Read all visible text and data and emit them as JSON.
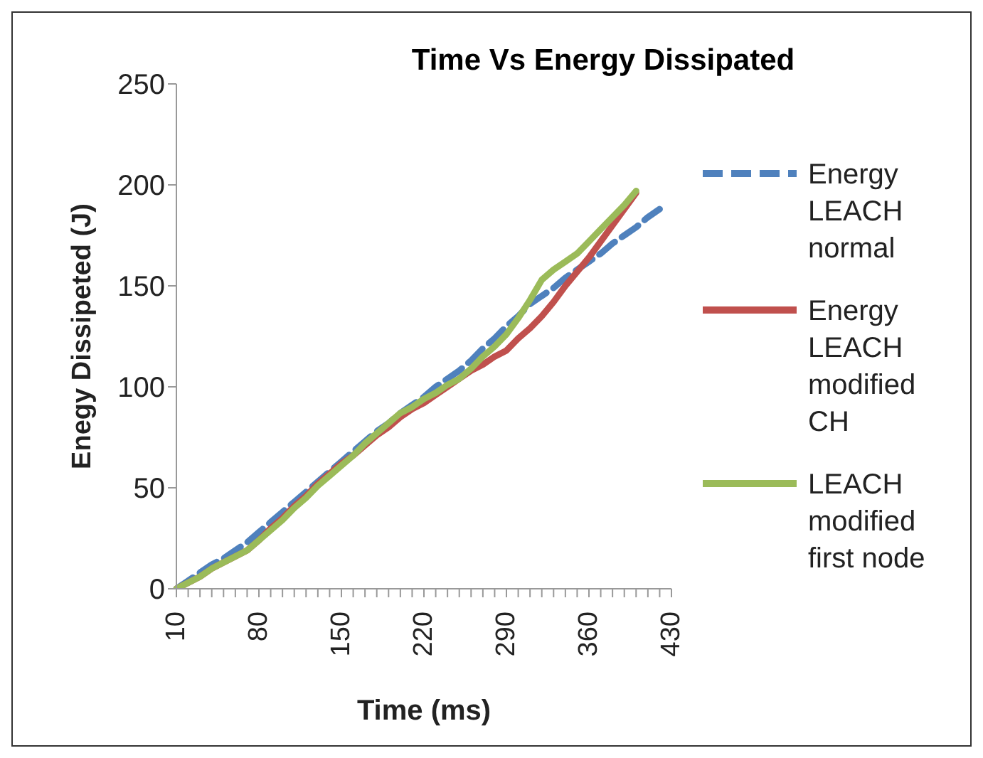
{
  "chart_data": {
    "type": "line",
    "title": "Time Vs Energy Dissipated",
    "xlabel": "Time (ms)",
    "ylabel": "Enegy Dissipeted (J)",
    "categories": [
      "10",
      null,
      null,
      null,
      null,
      null,
      null,
      "80",
      null,
      null,
      null,
      null,
      null,
      null,
      "150",
      null,
      null,
      null,
      null,
      null,
      null,
      "220",
      null,
      null,
      null,
      null,
      null,
      null,
      "290",
      null,
      null,
      null,
      null,
      null,
      null,
      "360",
      null,
      null,
      null,
      null,
      null,
      null,
      "430"
    ],
    "series": [
      {
        "name": "Energy LEACH normal",
        "color": "#4f81bd",
        "line_style": "dashed",
        "values": [
          0,
          4,
          8,
          12,
          15,
          19,
          23,
          28,
          33,
          38,
          43,
          48,
          53,
          58,
          63,
          68,
          73,
          78,
          82,
          87,
          91,
          95,
          100,
          104,
          108,
          113,
          119,
          124,
          130,
          135,
          141,
          145,
          149,
          154,
          158,
          162,
          166,
          171,
          175,
          179,
          184,
          188,
          null
        ]
      },
      {
        "name": "Energy LEACH modified CH",
        "color": "#c0504d",
        "line_style": "solid",
        "values": [
          0,
          3,
          6,
          10,
          13,
          16,
          19,
          24,
          30,
          35,
          41,
          46,
          52,
          57,
          62,
          66,
          71,
          76,
          80,
          85,
          89,
          92,
          96,
          100,
          104,
          108,
          111,
          115,
          118,
          124,
          129,
          135,
          142,
          150,
          157,
          164,
          172,
          180,
          188,
          196,
          null,
          null,
          null
        ]
      },
      {
        "name": "LEACH modified first node",
        "color": "#9bbb59",
        "line_style": "solid",
        "values": [
          0,
          3,
          6,
          10,
          13,
          16,
          19,
          24,
          29,
          34,
          40,
          45,
          51,
          56,
          61,
          66,
          72,
          77,
          82,
          87,
          90,
          94,
          97,
          101,
          104,
          109,
          115,
          120,
          126,
          134,
          143,
          153,
          158,
          162,
          166,
          172,
          178,
          184,
          190,
          197,
          null,
          null,
          null
        ]
      }
    ],
    "ylim": [
      0,
      250
    ],
    "yticks": [
      0,
      50,
      100,
      150,
      200,
      250
    ],
    "legend": "right",
    "marker": "none"
  }
}
